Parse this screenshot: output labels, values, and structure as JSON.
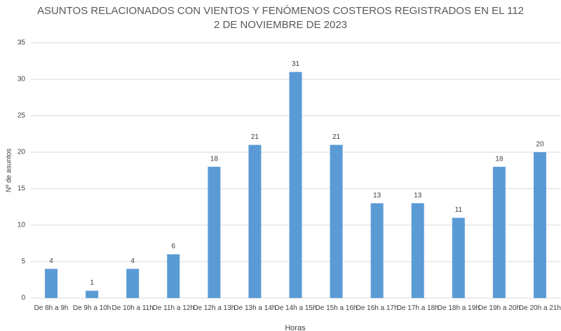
{
  "chart_data": {
    "type": "bar",
    "title": "ASUNTOS RELACIONADOS CON VIENTOS Y FENÓMENOS COSTEROS REGISTRADOS EN EL 112",
    "subtitle": "2 DE NOVIEMBRE DE 2023",
    "x_label": "Horas",
    "y_label": "Nº de asuntos",
    "categories": [
      "De 8h a 9h",
      "De 9h a 10h",
      "De 10h a 11h",
      "De 11h a 12h",
      "De 12h a 13h",
      "De 13h a 14h",
      "De 14h a 15h",
      "De 15h a 16h",
      "De 16h a 17h",
      "De 17h a 18h",
      "De 18h a 19h",
      "De 19h a 20h",
      "De 20h a 21h"
    ],
    "values": [
      4,
      1,
      4,
      6,
      18,
      21,
      31,
      21,
      13,
      13,
      11,
      18,
      20
    ],
    "color": "#5b9bd5",
    "ylim": [
      0,
      35
    ],
    "yticks": [
      0,
      5,
      10,
      15,
      20,
      25,
      30,
      35
    ],
    "grid": true
  }
}
